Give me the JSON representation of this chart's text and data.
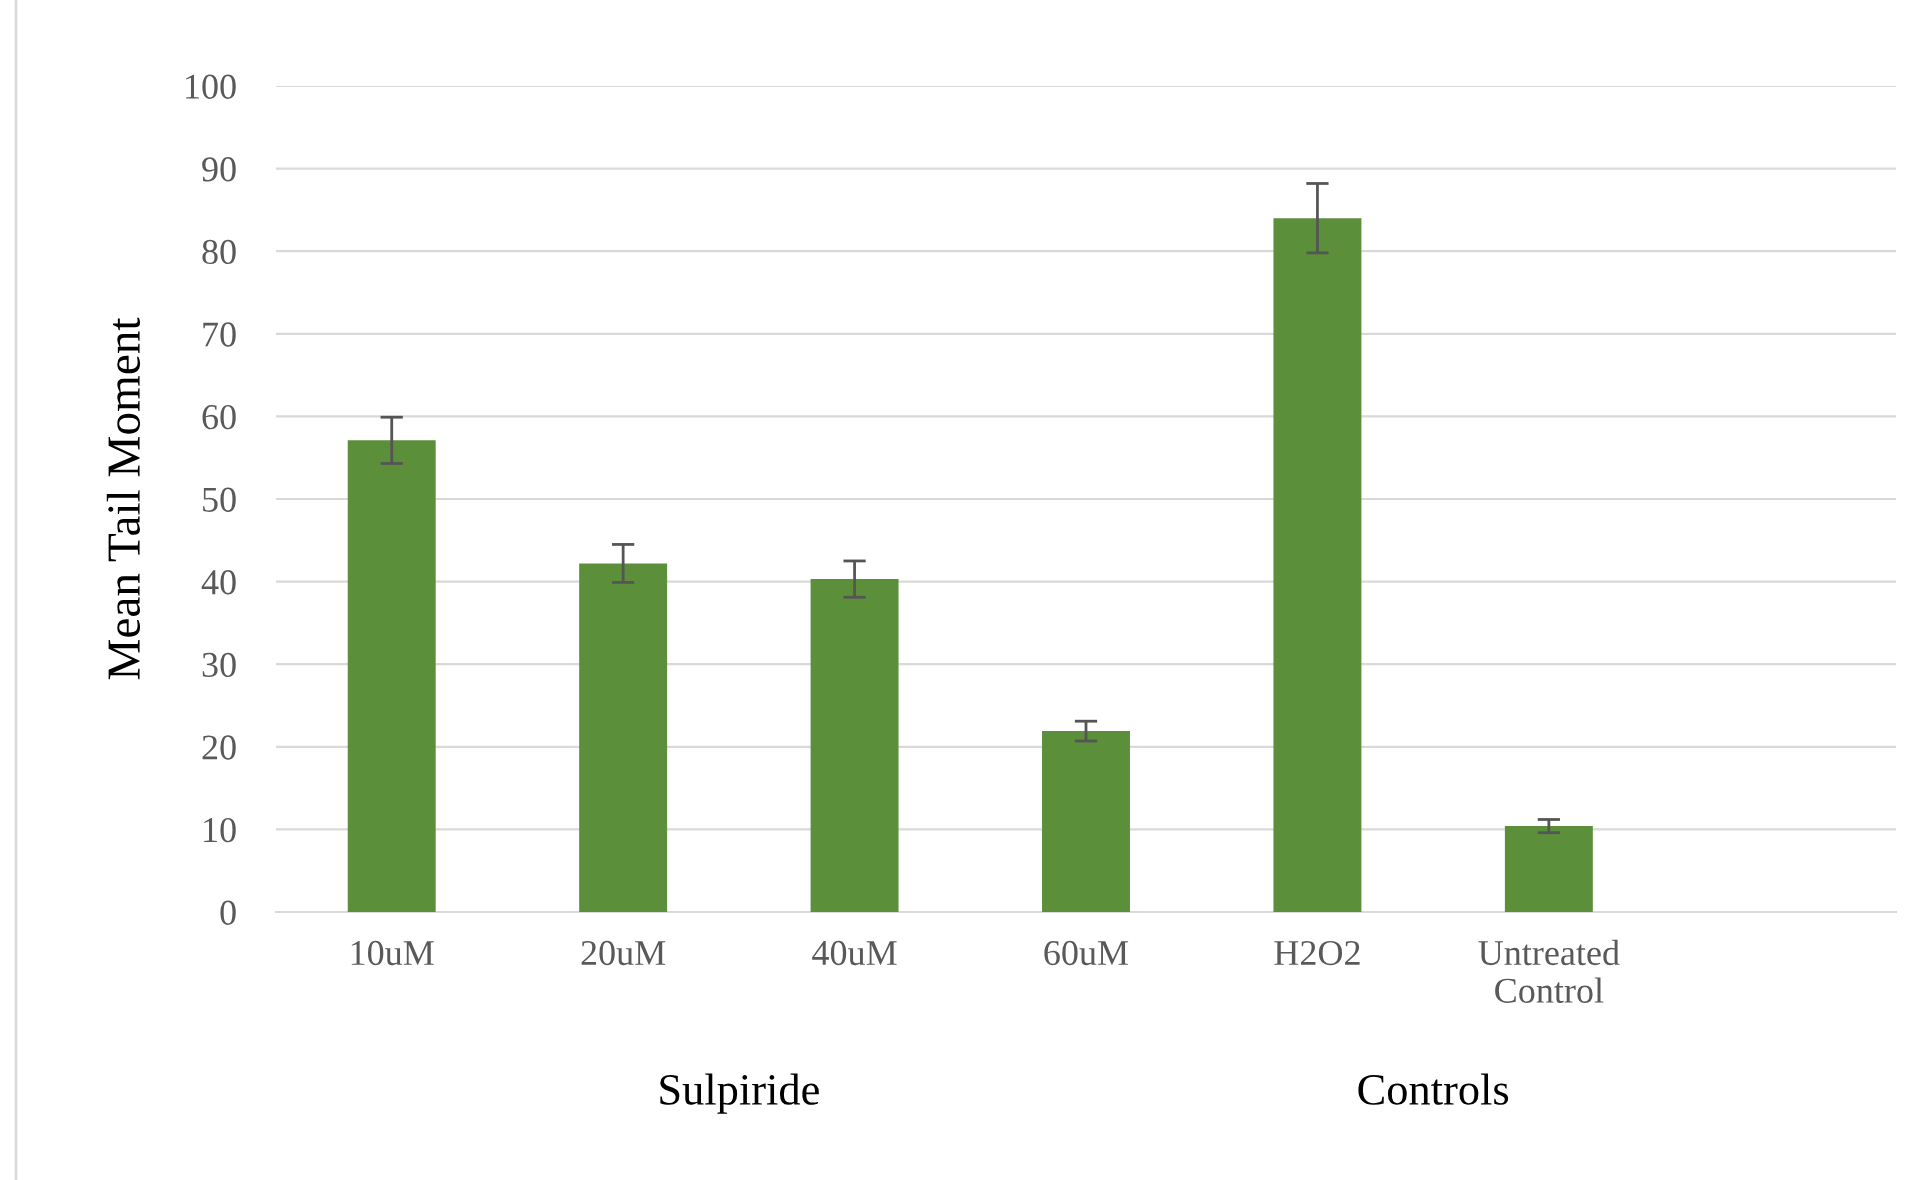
{
  "chart_data": {
    "type": "bar",
    "ylabel": "Mean Tail Moment",
    "categories": [
      "10uM",
      "20uM",
      "40uM",
      "60uM",
      "H2O2",
      "Untreated\nControl",
      null
    ],
    "values": [
      57.1,
      42.2,
      40.3,
      21.9,
      84,
      10.4,
      null
    ],
    "errors": [
      2.8,
      2.3,
      2.2,
      1.2,
      4.2,
      0.8,
      null
    ],
    "color": "#5b8f3a",
    "ylim": [
      0,
      100
    ],
    "yticks": [
      0,
      10,
      20,
      30,
      40,
      50,
      60,
      70,
      80,
      90,
      100
    ],
    "grid": "y",
    "legend": false,
    "annotations": [
      "Sulpiride",
      "Controls"
    ]
  }
}
